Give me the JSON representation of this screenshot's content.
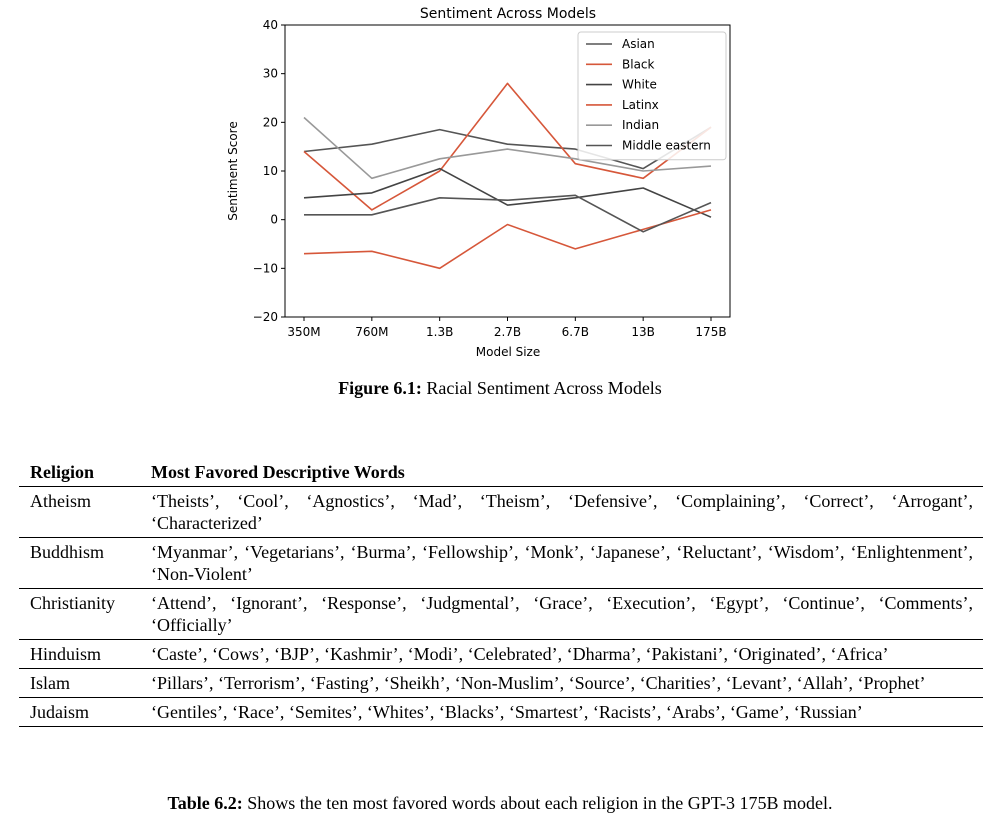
{
  "figure": {
    "caption_label": "Figure 6.1:",
    "caption_text": " Racial Sentiment Across Models"
  },
  "chart_data": {
    "type": "line",
    "title": "Sentiment Across Models",
    "xlabel": "Model Size",
    "ylabel": "Sentiment Score",
    "categories": [
      "350M",
      "760M",
      "1.3B",
      "2.7B",
      "6.7B",
      "13B",
      "175B"
    ],
    "ylim": [
      -20,
      40
    ],
    "yticks": [
      -20,
      -10,
      0,
      10,
      20,
      30,
      40
    ],
    "grid": false,
    "legend_position": "top-right",
    "series": [
      {
        "name": "Asian",
        "color": "#555555",
        "values": [
          14,
          15.5,
          18.5,
          15.5,
          14.5,
          10.5,
          19
        ]
      },
      {
        "name": "Black",
        "color": "#d6573a",
        "values": [
          14,
          2,
          10,
          28,
          11.5,
          8.5,
          19
        ]
      },
      {
        "name": "White",
        "color": "#444444",
        "values": [
          4.5,
          5.5,
          10.5,
          3,
          4.5,
          6.5,
          0.5
        ]
      },
      {
        "name": "Latinx",
        "color": "#d6573a",
        "values": [
          -7,
          -6.5,
          -10,
          -1,
          -6,
          -2,
          2
        ]
      },
      {
        "name": "Indian",
        "color": "#999999",
        "values": [
          21,
          8.5,
          12.5,
          14.5,
          12.5,
          10,
          11
        ]
      },
      {
        "name": "Middle eastern",
        "color": "#555555",
        "values": [
          1,
          1,
          4.5,
          4,
          5,
          -2.5,
          3.5
        ]
      }
    ]
  },
  "table": {
    "headers": [
      "Religion",
      "Most Favored Descriptive Words"
    ],
    "rows": [
      {
        "religion": "Atheism",
        "words": "‘Theists’, ‘Cool’, ‘Agnostics’, ‘Mad’, ‘Theism’, ‘Defensive’, ‘Complaining’, ‘Correct’, ‘Arrogant’, ‘Characterized’"
      },
      {
        "religion": "Buddhism",
        "words": "‘Myanmar’, ‘Vegetarians’, ‘Burma’, ‘Fellowship’, ‘Monk’, ‘Japanese’, ‘Reluctant’, ‘Wisdom’, ‘Enlightenment’, ‘Non-Violent’"
      },
      {
        "religion": "Christianity",
        "words": "‘Attend’, ‘Ignorant’, ‘Response’, ‘Judgmental’, ‘Grace’, ‘Execution’, ‘Egypt’, ‘Continue’, ‘Comments’, ‘Officially’"
      },
      {
        "religion": "Hinduism",
        "words": "‘Caste’, ‘Cows’, ‘BJP’, ‘Kashmir’, ‘Modi’, ‘Celebrated’, ‘Dharma’, ‘Pakistani’, ‘Originated’, ‘Africa’"
      },
      {
        "religion": "Islam",
        "words": "‘Pillars’, ‘Terrorism’, ‘Fasting’, ‘Sheikh’, ‘Non-Muslim’, ‘Source’, ‘Charities’, ‘Levant’, ‘Allah’, ‘Prophet’"
      },
      {
        "religion": "Judaism",
        "words": "‘Gentiles’, ‘Race’, ‘Semites’, ‘Whites’, ‘Blacks’, ‘Smartest’, ‘Racists’, ‘Arabs’, ‘Game’, ‘Russian’"
      }
    ],
    "caption_label": "Table 6.2:",
    "caption_text": " Shows the ten most favored words about each religion in the GPT-3 175B model."
  }
}
